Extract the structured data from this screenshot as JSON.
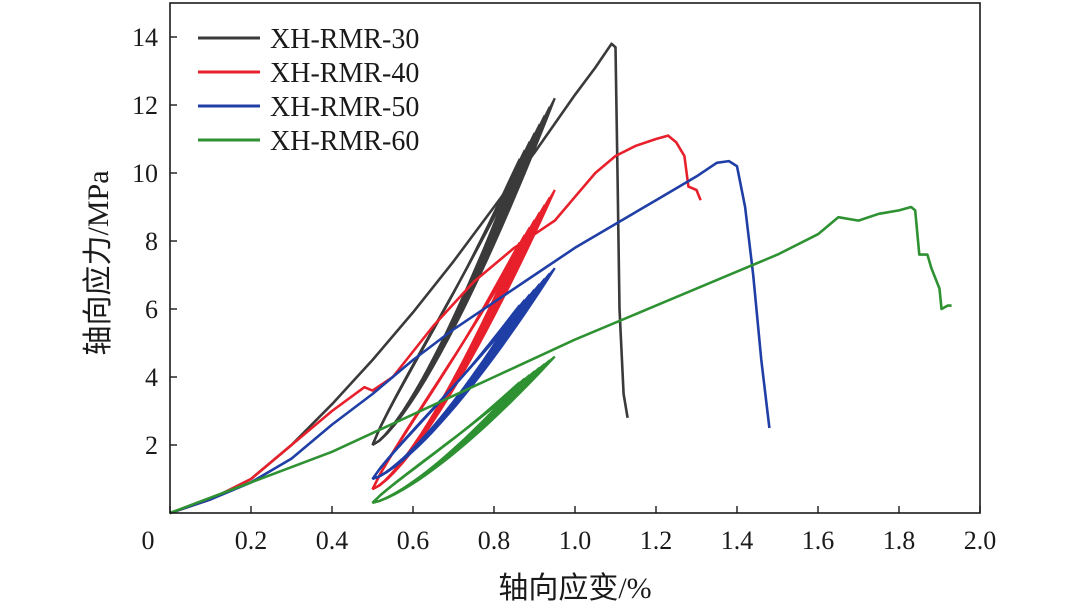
{
  "chart_data": {
    "type": "line",
    "xlabel": "轴向应变/%",
    "ylabel": "轴向应力/MPa",
    "xlim": [
      0,
      2.0
    ],
    "ylim": [
      0,
      15
    ],
    "x_ticks": [
      "0",
      "0.2",
      "0.4",
      "0.6",
      "0.8",
      "1.0",
      "1.2",
      "1.4",
      "1.6",
      "1.8",
      "2.0"
    ],
    "x_tick_values": [
      0,
      0.2,
      0.4,
      0.6,
      0.8,
      1.0,
      1.2,
      1.4,
      1.6,
      1.8,
      2.0
    ],
    "y_ticks": [
      "2",
      "4",
      "6",
      "8",
      "10",
      "12",
      "14"
    ],
    "y_tick_values": [
      2,
      4,
      6,
      8,
      10,
      12,
      14
    ],
    "legend_position": "top-left",
    "grid": false,
    "series": [
      {
        "name": "XH-RMR-30",
        "color": "#3a3a3a",
        "envelope": [
          [
            0,
            0
          ],
          [
            0.1,
            0.4
          ],
          [
            0.2,
            1.0
          ],
          [
            0.3,
            2.0
          ],
          [
            0.4,
            3.2
          ],
          [
            0.5,
            4.5
          ],
          [
            0.6,
            5.9
          ],
          [
            0.7,
            7.4
          ],
          [
            0.8,
            9.0
          ],
          [
            0.9,
            10.6
          ],
          [
            1.0,
            12.3
          ],
          [
            1.05,
            13.1
          ],
          [
            1.09,
            13.8
          ],
          [
            1.1,
            13.7
          ],
          [
            1.105,
            10.0
          ],
          [
            1.11,
            6.0
          ],
          [
            1.12,
            3.5
          ],
          [
            1.13,
            2.8
          ]
        ],
        "cycles": [
          {
            "x_min": 0.5,
            "y_min": 2.0,
            "x_max": 0.95,
            "y_max": 12.2,
            "count": 8
          }
        ]
      },
      {
        "name": "XH-RMR-40",
        "color": "#e8202c",
        "envelope": [
          [
            0,
            0
          ],
          [
            0.1,
            0.4
          ],
          [
            0.2,
            1.0
          ],
          [
            0.3,
            2.0
          ],
          [
            0.4,
            3.0
          ],
          [
            0.48,
            3.7
          ],
          [
            0.5,
            3.6
          ],
          [
            0.55,
            4.0
          ],
          [
            0.65,
            5.5
          ],
          [
            0.75,
            6.8
          ],
          [
            0.85,
            7.8
          ],
          [
            0.95,
            8.6
          ],
          [
            1.0,
            9.3
          ],
          [
            1.05,
            10.0
          ],
          [
            1.1,
            10.5
          ],
          [
            1.15,
            10.8
          ],
          [
            1.2,
            11.0
          ],
          [
            1.23,
            11.1
          ],
          [
            1.25,
            10.9
          ],
          [
            1.27,
            10.5
          ],
          [
            1.28,
            9.6
          ],
          [
            1.3,
            9.5
          ],
          [
            1.31,
            9.2
          ]
        ],
        "cycles": [
          {
            "x_min": 0.5,
            "y_min": 0.7,
            "x_max": 0.95,
            "y_max": 9.5,
            "count": 8
          }
        ]
      },
      {
        "name": "XH-RMR-50",
        "color": "#1f3fa6",
        "envelope": [
          [
            0,
            0
          ],
          [
            0.1,
            0.4
          ],
          [
            0.2,
            0.9
          ],
          [
            0.3,
            1.6
          ],
          [
            0.4,
            2.6
          ],
          [
            0.5,
            3.5
          ],
          [
            0.6,
            4.5
          ],
          [
            0.7,
            5.4
          ],
          [
            0.8,
            6.2
          ],
          [
            0.9,
            7.0
          ],
          [
            1.0,
            7.8
          ],
          [
            1.1,
            8.5
          ],
          [
            1.2,
            9.2
          ],
          [
            1.3,
            9.9
          ],
          [
            1.35,
            10.3
          ],
          [
            1.38,
            10.35
          ],
          [
            1.4,
            10.2
          ],
          [
            1.42,
            9.0
          ],
          [
            1.44,
            7.0
          ],
          [
            1.46,
            4.5
          ],
          [
            1.48,
            2.5
          ]
        ],
        "cycles": [
          {
            "x_min": 0.5,
            "y_min": 1.0,
            "x_max": 0.95,
            "y_max": 7.2,
            "count": 8
          }
        ]
      },
      {
        "name": "XH-RMR-60",
        "color": "#2e9132",
        "envelope": [
          [
            0,
            0
          ],
          [
            0.2,
            0.9
          ],
          [
            0.4,
            1.8
          ],
          [
            0.6,
            2.9
          ],
          [
            0.8,
            4.0
          ],
          [
            1.0,
            5.1
          ],
          [
            1.2,
            6.1
          ],
          [
            1.4,
            7.1
          ],
          [
            1.5,
            7.6
          ],
          [
            1.6,
            8.2
          ],
          [
            1.65,
            8.7
          ],
          [
            1.7,
            8.6
          ],
          [
            1.75,
            8.8
          ],
          [
            1.8,
            8.9
          ],
          [
            1.83,
            9.0
          ],
          [
            1.84,
            8.9
          ],
          [
            1.85,
            7.6
          ],
          [
            1.87,
            7.6
          ],
          [
            1.88,
            7.2
          ],
          [
            1.9,
            6.6
          ],
          [
            1.905,
            6.0
          ],
          [
            1.92,
            6.1
          ],
          [
            1.93,
            6.1
          ]
        ],
        "cycles": [
          {
            "x_min": 0.5,
            "y_min": 0.3,
            "x_max": 0.95,
            "y_max": 4.6,
            "count": 8
          }
        ]
      }
    ]
  }
}
